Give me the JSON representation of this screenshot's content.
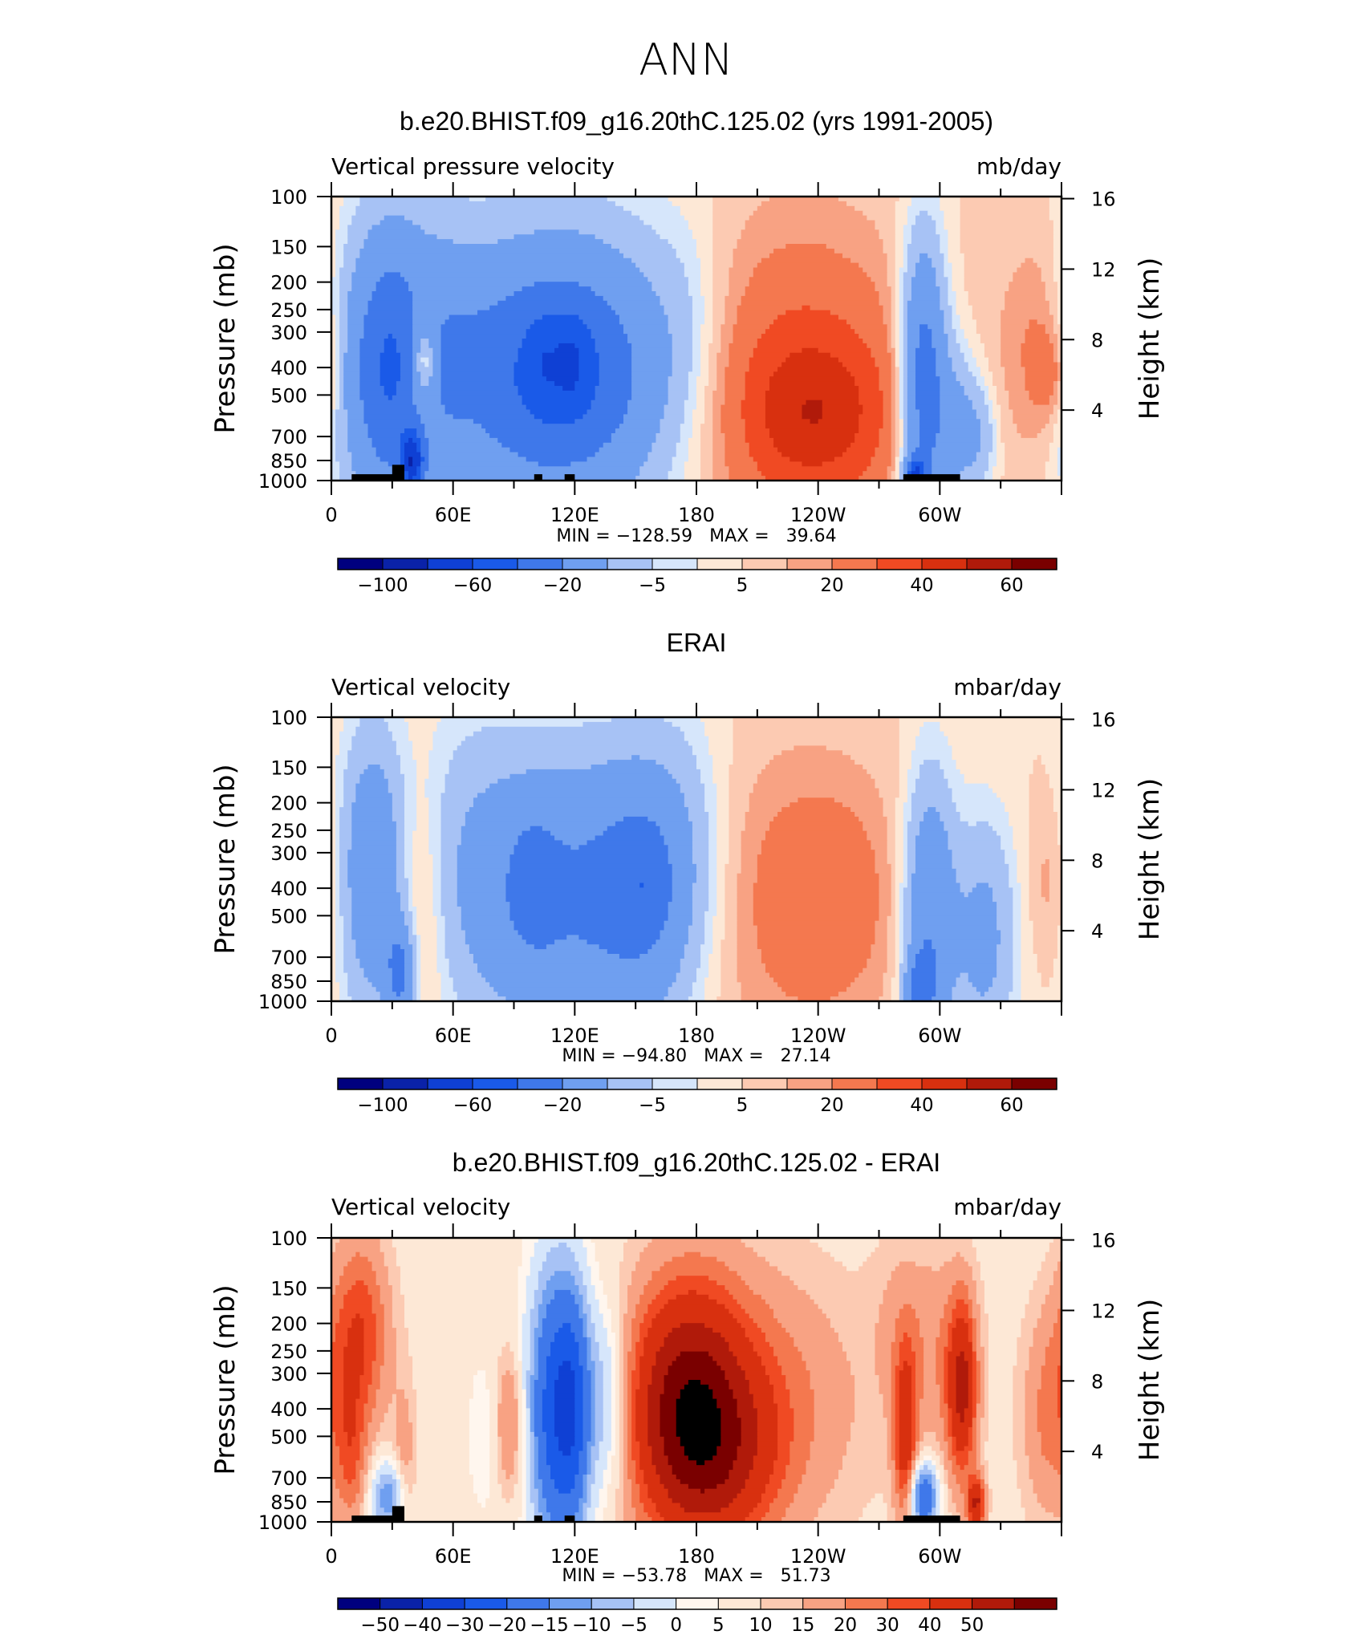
{
  "figure": {
    "supertitle": "ANN"
  },
  "colors": {
    "model_scale": [
      "#00007f",
      "#0a22a8",
      "#0f40d4",
      "#1a5ae8",
      "#3f78ea",
      "#6f9ff0",
      "#a7c2f5",
      "#d6e6fb",
      "#fde8d6",
      "#fccab2",
      "#f8a283",
      "#f4784f",
      "#f04a23",
      "#d8300f",
      "#b01a0a",
      "#7a0000"
    ],
    "diff_scale": [
      "#00007f",
      "#0a22a8",
      "#0f40d4",
      "#1a5ae8",
      "#3f78ea",
      "#6f9ff0",
      "#a7c2f5",
      "#d6e6fb",
      "#fff6ee",
      "#fde8d6",
      "#fccab2",
      "#f8a283",
      "#f4784f",
      "#f04a23",
      "#d8300f",
      "#b01a0a",
      "#7a0000"
    ]
  },
  "panels": [
    {
      "title": "b.e20.BHIST.f09_g16.20thC.125.02 (yrs 1991-2005)",
      "left_string": "Vertical pressure velocity",
      "right_string": "mb/day",
      "stats": "MIN = −128.59   MAX =   39.64",
      "left_axis_label": "Pressure (mb)",
      "right_axis_label": "Height (km)",
      "colorbar_labels": [
        "−100",
        "−60",
        "−20",
        "−5",
        "5",
        "20",
        "40",
        "60"
      ],
      "topography": true
    },
    {
      "title": "ERAI",
      "left_string": "Vertical velocity",
      "right_string": "mbar/day",
      "stats": "MIN = −94.80   MAX =   27.14",
      "left_axis_label": "Pressure (mb)",
      "right_axis_label": "Height (km)",
      "colorbar_labels": [
        "−100",
        "−60",
        "−20",
        "−5",
        "5",
        "20",
        "40",
        "60"
      ],
      "topography": false
    },
    {
      "title": "b.e20.BHIST.f09_g16.20thC.125.02 - ERAI",
      "left_string": "Vertical velocity",
      "right_string": "mbar/day",
      "stats": "MIN = −53.78   MAX =   51.73",
      "left_axis_label": "Pressure (mb)",
      "right_axis_label": "Height (km)",
      "colorbar_labels": [
        "−50",
        "−40",
        "−30",
        "−20",
        "−15",
        "−10",
        "−5",
        "0",
        "5",
        "10",
        "15",
        "20",
        "30",
        "40",
        "50"
      ],
      "topography": true
    }
  ],
  "chart_data": [
    {
      "type": "heatmap",
      "title": "b.e20.BHIST.f09_g16.20thC.125.02 (yrs 1991-2005)",
      "variable": "Vertical pressure velocity",
      "units": "mb/day",
      "min": -128.59,
      "max": 39.64,
      "x_ticklabels": [
        "0",
        "60E",
        "120E",
        "180",
        "120W",
        "60W"
      ],
      "x_range": [
        0,
        360
      ],
      "y_ticklabels": [
        "100",
        "150",
        "200",
        "250",
        "300",
        "400",
        "500",
        "700",
        "850",
        "1000"
      ],
      "y_range": [
        1000,
        100
      ],
      "y_scale": "log",
      "y2_ticklabels": [
        "16",
        "12",
        "8",
        "4"
      ],
      "contour_levels": [
        -120,
        -100,
        -80,
        -60,
        -40,
        -20,
        -10,
        -5,
        0,
        5,
        10,
        20,
        30,
        40,
        50,
        60
      ],
      "colorbar_ticklabels": [
        "−100",
        "−60",
        "−20",
        "−5",
        "5",
        "20",
        "40",
        "60"
      ],
      "blobs": [
        {
          "lon": 30,
          "p": 400,
          "w": 18,
          "h": 1.6,
          "v": -55
        },
        {
          "lon": 40,
          "p": 860,
          "w": 4,
          "h": 0.35,
          "v": -70
        },
        {
          "lon": 44,
          "p": 430,
          "w": 7,
          "h": 1.1,
          "v": 20
        },
        {
          "lon": 46,
          "p": 380,
          "w": 4,
          "h": 0.4,
          "v": 30
        },
        {
          "lon": 112,
          "p": 420,
          "w": 48,
          "h": 1.7,
          "v": -45
        },
        {
          "lon": 112,
          "p": 420,
          "w": 28,
          "h": 1.1,
          "v": -25
        },
        {
          "lon": 118,
          "p": 380,
          "w": 6,
          "h": 0.5,
          "v": -20
        },
        {
          "lon": 104,
          "p": 380,
          "w": 5,
          "h": 0.5,
          "v": -12
        },
        {
          "lon": 225,
          "p": 450,
          "w": 42,
          "h": 1.8,
          "v": 24
        },
        {
          "lon": 240,
          "p": 600,
          "w": 26,
          "h": 0.9,
          "v": 20
        },
        {
          "lon": 292,
          "p": 450,
          "w": 8,
          "h": 1.6,
          "v": -55
        },
        {
          "lon": 288,
          "p": 950,
          "w": 4,
          "h": 0.2,
          "v": -60
        },
        {
          "lon": 308,
          "p": 650,
          "w": 8,
          "h": 0.9,
          "v": -25
        },
        {
          "lon": 320,
          "p": 700,
          "w": 6,
          "h": 0.6,
          "v": -15
        },
        {
          "lon": 350,
          "p": 350,
          "w": 14,
          "h": 1.3,
          "v": 14
        },
        {
          "lon": 355,
          "p": 420,
          "w": 6,
          "h": 0.5,
          "v": 12
        },
        {
          "lon": 65,
          "p": 300,
          "w": 12,
          "h": 1.2,
          "v": -5
        },
        {
          "lon": 175,
          "p": 250,
          "w": 12,
          "h": 1.2,
          "v": -5
        }
      ]
    },
    {
      "type": "heatmap",
      "title": "ERAI",
      "variable": "Vertical velocity",
      "units": "mbar/day",
      "min": -94.8,
      "max": 27.14,
      "x_ticklabels": [
        "0",
        "60E",
        "120E",
        "180",
        "120W",
        "60W"
      ],
      "x_range": [
        0,
        360
      ],
      "y_ticklabels": [
        "100",
        "150",
        "200",
        "250",
        "300",
        "400",
        "500",
        "700",
        "850",
        "1000"
      ],
      "y_range": [
        1000,
        100
      ],
      "y_scale": "log",
      "y2_ticklabels": [
        "16",
        "12",
        "8",
        "4"
      ],
      "contour_levels": [
        -120,
        -100,
        -80,
        -60,
        -40,
        -20,
        -10,
        -5,
        0,
        5,
        10,
        20,
        30,
        40,
        50,
        60
      ],
      "colorbar_ticklabels": [
        "−100",
        "−60",
        "−20",
        "−5",
        "5",
        "20",
        "40",
        "60"
      ],
      "blobs": [
        {
          "lon": 20,
          "p": 350,
          "w": 11,
          "h": 1.6,
          "v": -35
        },
        {
          "lon": 34,
          "p": 800,
          "w": 5,
          "h": 0.6,
          "v": -40
        },
        {
          "lon": 44,
          "p": 450,
          "w": 9,
          "h": 1.4,
          "v": 12
        },
        {
          "lon": 105,
          "p": 420,
          "w": 34,
          "h": 1.6,
          "v": -40
        },
        {
          "lon": 155,
          "p": 400,
          "w": 20,
          "h": 1.5,
          "v": -36
        },
        {
          "lon": 100,
          "p": 380,
          "w": 8,
          "h": 0.7,
          "v": -15
        },
        {
          "lon": 155,
          "p": 380,
          "w": 8,
          "h": 0.6,
          "v": -10
        },
        {
          "lon": 230,
          "p": 450,
          "w": 38,
          "h": 1.8,
          "v": 12
        },
        {
          "lon": 245,
          "p": 420,
          "w": 20,
          "h": 1.1,
          "v": 8
        },
        {
          "lon": 295,
          "p": 500,
          "w": 9,
          "h": 1.6,
          "v": -40
        },
        {
          "lon": 290,
          "p": 900,
          "w": 5,
          "h": 0.4,
          "v": -35
        },
        {
          "lon": 322,
          "p": 600,
          "w": 11,
          "h": 1.4,
          "v": -25
        },
        {
          "lon": 355,
          "p": 380,
          "w": 8,
          "h": 0.9,
          "v": 8
        },
        {
          "lon": 65,
          "p": 200,
          "w": 20,
          "h": 1.6,
          "v": -5
        },
        {
          "lon": 175,
          "p": 200,
          "w": 16,
          "h": 1.6,
          "v": -5
        }
      ]
    },
    {
      "type": "heatmap",
      "title": "b.e20.BHIST.f09_g16.20thC.125.02 - ERAI",
      "variable": "Vertical velocity",
      "units": "mbar/day",
      "min": -53.78,
      "max": 51.73,
      "x_ticklabels": [
        "0",
        "60E",
        "120E",
        "180",
        "120W",
        "60W"
      ],
      "x_range": [
        0,
        360
      ],
      "y_ticklabels": [
        "100",
        "150",
        "200",
        "250",
        "300",
        "400",
        "500",
        "700",
        "850",
        "1000"
      ],
      "y_range": [
        1000,
        100
      ],
      "y_scale": "log",
      "y2_ticklabels": [
        "16",
        "12",
        "8",
        "4"
      ],
      "contour_levels": [
        -60,
        -50,
        -40,
        -30,
        -20,
        -15,
        -10,
        -5,
        -2,
        2,
        5,
        10,
        15,
        20,
        30,
        40,
        50
      ],
      "colorbar_ticklabels": [
        "−50",
        "−40",
        "−30",
        "−20",
        "−15",
        "−10",
        "−5",
        "0",
        "5",
        "10",
        "15",
        "20",
        "30",
        "40",
        "50"
      ],
      "blobs": [
        {
          "lon": 14,
          "p": 220,
          "w": 10,
          "h": 1.1,
          "v": 20
        },
        {
          "lon": 10,
          "p": 600,
          "w": 5,
          "h": 0.8,
          "v": 12
        },
        {
          "lon": 28,
          "p": 820,
          "w": 6,
          "h": 0.4,
          "v": -20
        },
        {
          "lon": 36,
          "p": 650,
          "w": 4,
          "h": 1.0,
          "v": 8
        },
        {
          "lon": 88,
          "p": 450,
          "w": 5,
          "h": 0.8,
          "v": 12
        },
        {
          "lon": 75,
          "p": 500,
          "w": 6,
          "h": 1.0,
          "v": -4
        },
        {
          "lon": 110,
          "p": 400,
          "w": 9,
          "h": 1.6,
          "v": -35
        },
        {
          "lon": 120,
          "p": 400,
          "w": 6,
          "h": 1.4,
          "v": -22
        },
        {
          "lon": 136,
          "p": 380,
          "w": 8,
          "h": 1.1,
          "v": -15
        },
        {
          "lon": 175,
          "p": 400,
          "w": 20,
          "h": 1.4,
          "v": 40
        },
        {
          "lon": 210,
          "p": 380,
          "w": 35,
          "h": 1.5,
          "v": 12
        },
        {
          "lon": 195,
          "p": 600,
          "w": 20,
          "h": 1.0,
          "v": 15
        },
        {
          "lon": 283,
          "p": 500,
          "w": 4,
          "h": 1.0,
          "v": 25
        },
        {
          "lon": 292,
          "p": 820,
          "w": 5,
          "h": 0.4,
          "v": -30
        },
        {
          "lon": 311,
          "p": 340,
          "w": 5,
          "h": 1.0,
          "v": 30
        },
        {
          "lon": 300,
          "p": 260,
          "w": 12,
          "h": 1.2,
          "v": 8
        },
        {
          "lon": 318,
          "p": 860,
          "w": 3,
          "h": 0.3,
          "v": 30
        },
        {
          "lon": 355,
          "p": 420,
          "w": 10,
          "h": 1.2,
          "v": 12
        },
        {
          "lon": 280,
          "p": 200,
          "w": 10,
          "h": 1.0,
          "v": 5
        }
      ]
    }
  ]
}
